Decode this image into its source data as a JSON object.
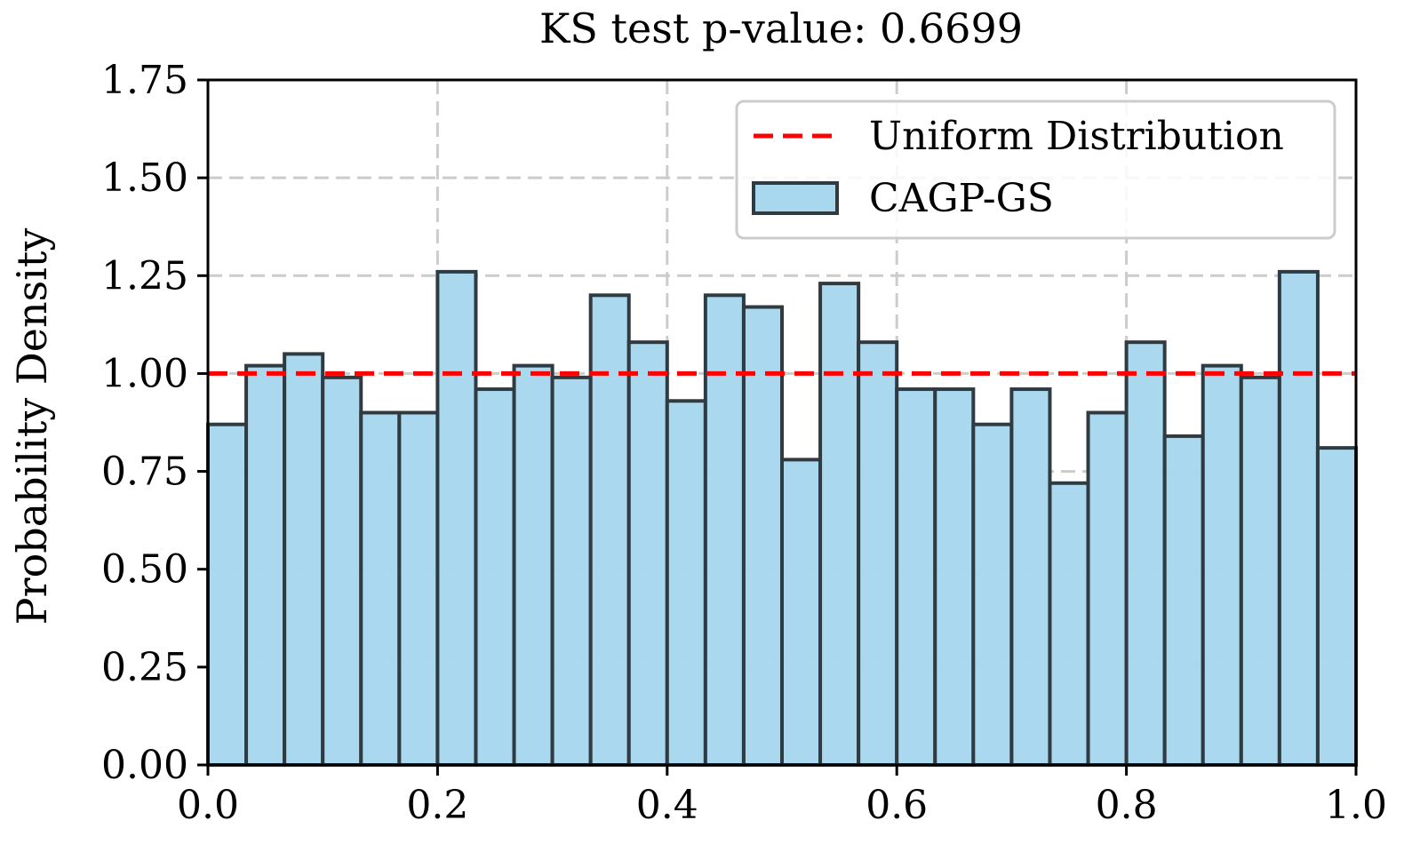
{
  "chart_data": {
    "type": "bar",
    "title": "KS test p-value: 0.6699",
    "xlabel": "",
    "ylabel": "Probability Density",
    "xlim": [
      0.0,
      1.0
    ],
    "ylim": [
      0.0,
      1.75
    ],
    "x_ticks": [
      "0.0",
      "0.2",
      "0.4",
      "0.6",
      "0.8",
      "1.0"
    ],
    "y_ticks": [
      "0.00",
      "0.25",
      "0.50",
      "0.75",
      "1.00",
      "1.25",
      "1.50",
      "1.75"
    ],
    "grid": true,
    "legend_position": "top-right",
    "legend": {
      "uniform_label": "Uniform Distribution",
      "hist_label": "CAGP-GS"
    },
    "uniform_line_value": 1.0,
    "bin_count": 30,
    "bin_range": [
      0.0,
      1.0
    ],
    "values": [
      0.87,
      1.02,
      1.05,
      0.99,
      0.9,
      0.9,
      1.26,
      0.96,
      1.02,
      0.99,
      1.2,
      1.08,
      0.93,
      1.2,
      1.17,
      0.78,
      1.23,
      1.08,
      0.96,
      0.96,
      0.87,
      0.96,
      0.72,
      0.9,
      1.08,
      0.84,
      1.02,
      0.99,
      1.26,
      0.81
    ],
    "colors": {
      "bar_fill": "#a7d8ee",
      "bar_edge": "#2f3b40",
      "uniform_line": "#ff0000",
      "grid": "#cccccc",
      "axis": "#000000"
    }
  }
}
